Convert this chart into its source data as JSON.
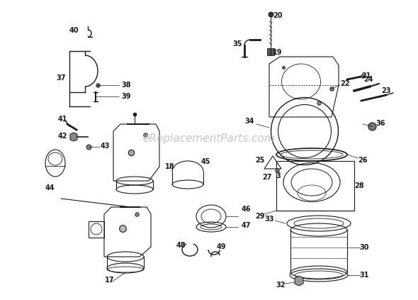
{
  "watermark": "eReplacementParts.com",
  "background_color": "#ffffff",
  "line_color": "#1a1a1a",
  "label_fontsize": 7,
  "watermark_fontsize": 11,
  "fig_width": 5.9,
  "fig_height": 4.23,
  "dpi": 100
}
